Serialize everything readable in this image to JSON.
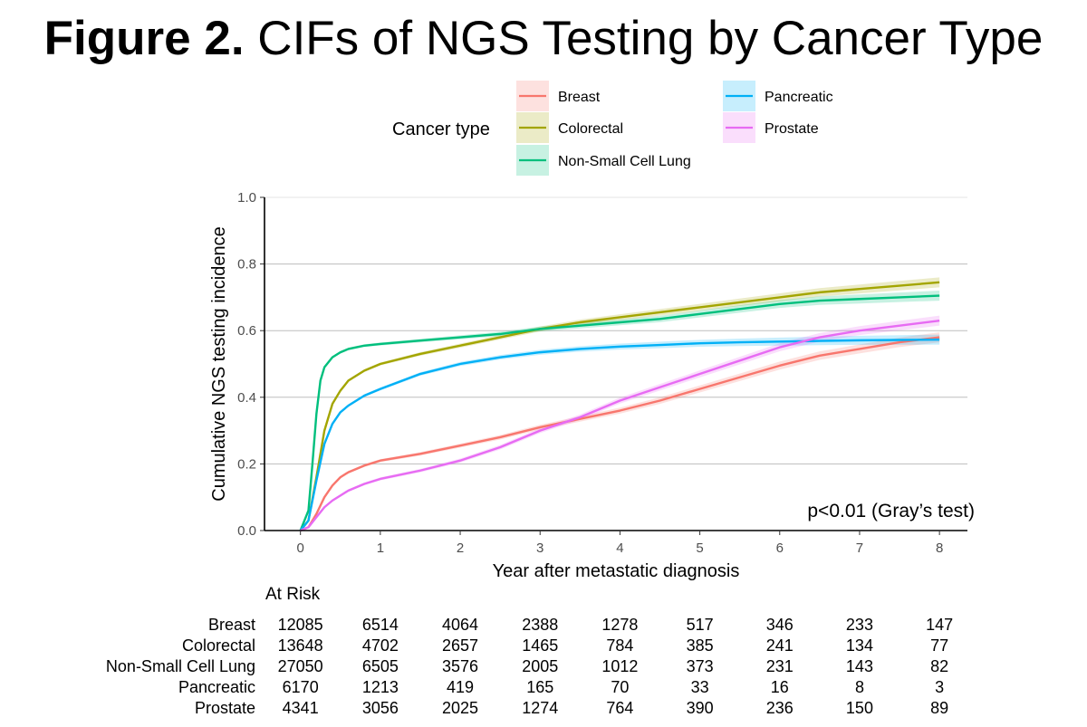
{
  "figure": {
    "label": "Figure 2.",
    "title": "CIFs of NGS Testing by Cancer Type"
  },
  "chart_data": {
    "type": "line",
    "title": "CIFs of NGS Testing by Cancer Type",
    "xlabel": "Year after metastatic diagnosis",
    "ylabel": "Cumulative NGS testing incidence",
    "xlim": [
      -0.45,
      8.35
    ],
    "ylim": [
      0,
      1.0
    ],
    "xticks": [
      0,
      1,
      2,
      3,
      4,
      5,
      6,
      7,
      8
    ],
    "yticks": [
      0.0,
      0.2,
      0.4,
      0.6,
      0.8,
      1.0
    ],
    "ytick_labels": [
      "0.0",
      "0.2",
      "0.4",
      "0.6",
      "0.8",
      "1.0"
    ],
    "legend_title": "Cancer type",
    "legend_position": "top",
    "annotation": "p<0.01 (Gray’s test)",
    "series": [
      {
        "name": "Breast",
        "color": "#F8766D",
        "x": [
          0,
          0.1,
          0.2,
          0.3,
          0.4,
          0.5,
          0.6,
          0.8,
          1,
          1.5,
          2,
          2.5,
          3,
          3.5,
          4,
          4.5,
          5,
          5.5,
          6,
          6.5,
          7,
          7.5,
          8
        ],
        "y": [
          0,
          0.01,
          0.05,
          0.1,
          0.135,
          0.16,
          0.175,
          0.195,
          0.21,
          0.23,
          0.255,
          0.28,
          0.31,
          0.335,
          0.36,
          0.39,
          0.425,
          0.46,
          0.495,
          0.525,
          0.545,
          0.565,
          0.58
        ]
      },
      {
        "name": "Colorectal",
        "color": "#A3A500",
        "x": [
          0,
          0.1,
          0.2,
          0.3,
          0.4,
          0.5,
          0.6,
          0.8,
          1,
          1.5,
          2,
          2.5,
          3,
          3.5,
          4,
          4.5,
          5,
          5.5,
          6,
          6.5,
          7,
          7.5,
          8
        ],
        "y": [
          0,
          0.03,
          0.16,
          0.3,
          0.38,
          0.42,
          0.45,
          0.48,
          0.5,
          0.53,
          0.555,
          0.58,
          0.605,
          0.625,
          0.64,
          0.655,
          0.67,
          0.685,
          0.7,
          0.715,
          0.725,
          0.735,
          0.745
        ]
      },
      {
        "name": "Non-Small Cell Lung",
        "color": "#00BF7D",
        "x": [
          0,
          0.1,
          0.15,
          0.2,
          0.25,
          0.3,
          0.4,
          0.5,
          0.6,
          0.8,
          1,
          1.5,
          2,
          2.5,
          3,
          3.5,
          4,
          4.5,
          5,
          5.5,
          6,
          6.5,
          7,
          7.5,
          8
        ],
        "y": [
          0,
          0.06,
          0.2,
          0.35,
          0.45,
          0.49,
          0.52,
          0.535,
          0.545,
          0.555,
          0.56,
          0.57,
          0.58,
          0.59,
          0.605,
          0.615,
          0.625,
          0.635,
          0.65,
          0.665,
          0.68,
          0.69,
          0.695,
          0.7,
          0.705
        ]
      },
      {
        "name": "Pancreatic",
        "color": "#00B0F6",
        "x": [
          0,
          0.1,
          0.2,
          0.3,
          0.4,
          0.5,
          0.6,
          0.8,
          1,
          1.5,
          2,
          2.5,
          3,
          3.5,
          4,
          4.5,
          5,
          5.5,
          6,
          6.5,
          7,
          7.5,
          8
        ],
        "y": [
          0,
          0.03,
          0.15,
          0.26,
          0.32,
          0.355,
          0.375,
          0.405,
          0.425,
          0.47,
          0.5,
          0.52,
          0.535,
          0.545,
          0.552,
          0.557,
          0.562,
          0.565,
          0.567,
          0.569,
          0.571,
          0.572,
          0.573
        ]
      },
      {
        "name": "Prostate",
        "color": "#E76BF3",
        "x": [
          0,
          0.1,
          0.2,
          0.3,
          0.4,
          0.5,
          0.6,
          0.8,
          1,
          1.5,
          2,
          2.5,
          3,
          3.5,
          4,
          4.5,
          5,
          5.5,
          6,
          6.5,
          7,
          7.5,
          8
        ],
        "y": [
          0,
          0.01,
          0.04,
          0.07,
          0.09,
          0.105,
          0.12,
          0.14,
          0.155,
          0.18,
          0.21,
          0.25,
          0.3,
          0.34,
          0.39,
          0.43,
          0.47,
          0.51,
          0.55,
          0.58,
          0.6,
          0.615,
          0.63
        ]
      }
    ]
  },
  "at_risk": {
    "title": "At Risk",
    "rows": [
      {
        "name": "Breast",
        "values": [
          "12085",
          "6514",
          "4064",
          "2388",
          "1278",
          "517",
          "346",
          "233",
          "147"
        ]
      },
      {
        "name": "Colorectal",
        "values": [
          "13648",
          "4702",
          "2657",
          "1465",
          "784",
          "385",
          "241",
          "134",
          "77"
        ]
      },
      {
        "name": "Non-Small Cell Lung",
        "values": [
          "27050",
          "6505",
          "3576",
          "2005",
          "1012",
          "373",
          "231",
          "143",
          "82"
        ]
      },
      {
        "name": "Pancreatic",
        "values": [
          "6170",
          "1213",
          "419",
          "165",
          "70",
          "33",
          "16",
          "8",
          "3"
        ]
      },
      {
        "name": "Prostate",
        "values": [
          "4341",
          "3056",
          "2025",
          "1274",
          "764",
          "390",
          "236",
          "150",
          "89"
        ]
      }
    ]
  }
}
